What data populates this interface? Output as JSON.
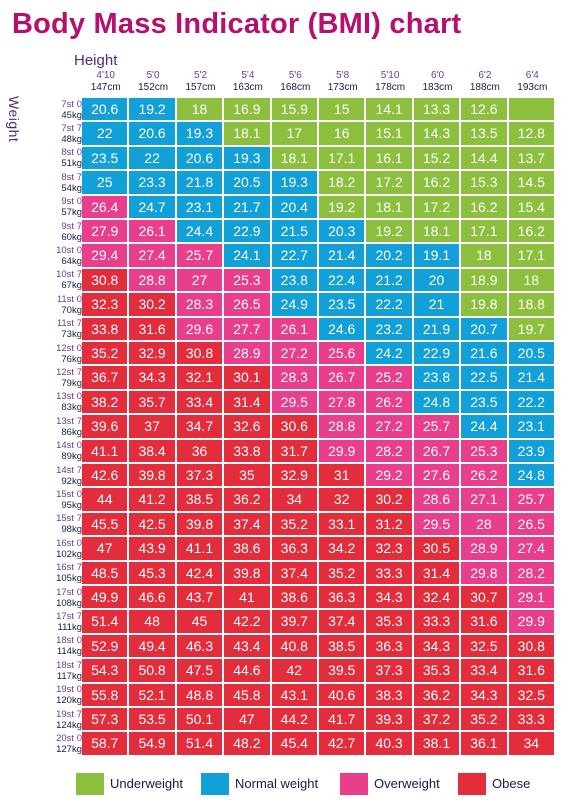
{
  "title": "Body Mass Indicator (BMI) chart",
  "height_label": "Height",
  "weight_label": "Weight",
  "colors": {
    "U": "#8bbf3d",
    "N": "#11a0d8",
    "O": "#e83e8c",
    "B": "#e32d3c"
  },
  "legend": [
    {
      "key": "U",
      "label": "Underweight"
    },
    {
      "key": "N",
      "label": "Normal weight"
    },
    {
      "key": "O",
      "label": "Overweight"
    },
    {
      "key": "B",
      "label": "Obese"
    }
  ],
  "chart_data": {
    "type": "table",
    "columns": [
      {
        "ft": "4'10",
        "cm": "147cm"
      },
      {
        "ft": "5'0",
        "cm": "152cm"
      },
      {
        "ft": "5'2",
        "cm": "157cm"
      },
      {
        "ft": "5'4",
        "cm": "163cm"
      },
      {
        "ft": "5'6",
        "cm": "168cm"
      },
      {
        "ft": "5'8",
        "cm": "173cm"
      },
      {
        "ft": "5'10",
        "cm": "178cm"
      },
      {
        "ft": "6'0",
        "cm": "183cm"
      },
      {
        "ft": "6'2",
        "cm": "188cm"
      },
      {
        "ft": "6'4",
        "cm": "193cm"
      }
    ],
    "rows": [
      {
        "st": "7st 0",
        "kg": "45kg",
        "values": [
          "20.6",
          "19.2",
          "18",
          "16.9",
          "15.9",
          "15",
          "14.1",
          "13.3",
          "12.6",
          ""
        ],
        "cats": "NNUUUUUUUU"
      },
      {
        "st": "7st 7",
        "kg": "48kg",
        "values": [
          "22",
          "20.6",
          "19.3",
          "18.1",
          "17",
          "16",
          "15.1",
          "14.3",
          "13.5",
          "12.8"
        ],
        "cats": "NNNUUUUUUU"
      },
      {
        "st": "8st 0",
        "kg": "51kg",
        "values": [
          "23.5",
          "22",
          "20.6",
          "19.3",
          "18.1",
          "17.1",
          "16.1",
          "15.2",
          "14.4",
          "13.7"
        ],
        "cats": "NNNNUUUUUU"
      },
      {
        "st": "8st 7",
        "kg": "54kg",
        "values": [
          "25",
          "23.3",
          "21.8",
          "20.5",
          "19.3",
          "18.2",
          "17.2",
          "16.2",
          "15.3",
          "14.5"
        ],
        "cats": "NNNNNUUUUU"
      },
      {
        "st": "9st 0",
        "kg": "57kg",
        "values": [
          "26.4",
          "24.7",
          "23.1",
          "21.7",
          "20.4",
          "19.2",
          "18.1",
          "17.2",
          "16.2",
          "15.4"
        ],
        "cats": "ONNNNUUUUU"
      },
      {
        "st": "9st 7",
        "kg": "60kg",
        "values": [
          "27.9",
          "26.1",
          "24.4",
          "22.9",
          "21.5",
          "20.3",
          "19.2",
          "18.1",
          "17.1",
          "16.2"
        ],
        "cats": "OONNNNUUUU"
      },
      {
        "st": "10st 0",
        "kg": "64kg",
        "values": [
          "29.4",
          "27.4",
          "25.7",
          "24.1",
          "22.7",
          "21.4",
          "20.2",
          "19.1",
          "18",
          "17.1"
        ],
        "cats": "OOONNNNNUU"
      },
      {
        "st": "10st 7",
        "kg": "67kg",
        "values": [
          "30.8",
          "28.8",
          "27",
          "25.3",
          "23.8",
          "22.4",
          "21.2",
          "20",
          "18.9",
          "18"
        ],
        "cats": "BOOONNNNUU"
      },
      {
        "st": "11st 0",
        "kg": "70kg",
        "values": [
          "32.3",
          "30.2",
          "28.3",
          "26.5",
          "24.9",
          "23.5",
          "22.2",
          "21",
          "19.8",
          "18.8"
        ],
        "cats": "BBOONNNNUU"
      },
      {
        "st": "11st 7",
        "kg": "73kg",
        "values": [
          "33.8",
          "31.6",
          "29.6",
          "27.7",
          "26.1",
          "24.6",
          "23.2",
          "21.9",
          "20.7",
          "19.7"
        ],
        "cats": "BBOOONNNNU"
      },
      {
        "st": "12st 0",
        "kg": "76kg",
        "values": [
          "35.2",
          "32.9",
          "30.8",
          "28.9",
          "27.2",
          "25.6",
          "24.2",
          "22.9",
          "21.6",
          "20.5"
        ],
        "cats": "BBBOOONNNN"
      },
      {
        "st": "12st 7",
        "kg": "79kg",
        "values": [
          "36.7",
          "34.3",
          "32.1",
          "30.1",
          "28.3",
          "26.7",
          "25.2",
          "23.8",
          "22.5",
          "21.4"
        ],
        "cats": "BBBBOOONNN"
      },
      {
        "st": "13st 0",
        "kg": "83kg",
        "values": [
          "38.2",
          "35.7",
          "33.4",
          "31.4",
          "29.5",
          "27.8",
          "26.2",
          "24.8",
          "23.5",
          "22.2"
        ],
        "cats": "BBBBOOONNN"
      },
      {
        "st": "13st 7",
        "kg": "86kg",
        "values": [
          "39.6",
          "37",
          "34.7",
          "32.6",
          "30.6",
          "28.8",
          "27.2",
          "25.7",
          "24.4",
          "23.1"
        ],
        "cats": "BBBBBOOONN"
      },
      {
        "st": "14st 0",
        "kg": "89kg",
        "values": [
          "41.1",
          "38.4",
          "36",
          "33.8",
          "31.7",
          "29.9",
          "28.2",
          "26.7",
          "25.3",
          "23.9"
        ],
        "cats": "BBBBBOOOON"
      },
      {
        "st": "14st 7",
        "kg": "92kg",
        "values": [
          "42.6",
          "39.8",
          "37.3",
          "35",
          "32.9",
          "31",
          "29.2",
          "27.6",
          "26.2",
          "24.8"
        ],
        "cats": "BBBBBBOOON"
      },
      {
        "st": "15st 0",
        "kg": "95kg",
        "values": [
          "44",
          "41.2",
          "38.5",
          "36.2",
          "34",
          "32",
          "30.2",
          "28.6",
          "27.1",
          "25.7"
        ],
        "cats": "BBBBBBBOOO"
      },
      {
        "st": "15st 7",
        "kg": "98kg",
        "values": [
          "45.5",
          "42.5",
          "39.8",
          "37.4",
          "35.2",
          "33.1",
          "31.2",
          "29.5",
          "28",
          "26.5"
        ],
        "cats": "BBBBBBBOOO"
      },
      {
        "st": "16st 0",
        "kg": "102kg",
        "values": [
          "47",
          "43.9",
          "41.1",
          "38.6",
          "36.3",
          "34.2",
          "32.3",
          "30.5",
          "28.9",
          "27.4"
        ],
        "cats": "BBBBBBBBOO"
      },
      {
        "st": "16st 7",
        "kg": "105kg",
        "values": [
          "48.5",
          "45.3",
          "42.4",
          "39.8",
          "37.4",
          "35.2",
          "33.3",
          "31.4",
          "29.8",
          "28.2"
        ],
        "cats": "BBBBBBBBOO"
      },
      {
        "st": "17st 0",
        "kg": "108kg",
        "values": [
          "49.9",
          "46.6",
          "43.7",
          "41",
          "38.6",
          "36.3",
          "34.3",
          "32.4",
          "30.7",
          "29.1"
        ],
        "cats": "BBBBBBBBBO"
      },
      {
        "st": "17st 7",
        "kg": "111kg",
        "values": [
          "51.4",
          "48",
          "45",
          "42.2",
          "39.7",
          "37.4",
          "35.3",
          "33.3",
          "31.6",
          "29.9"
        ],
        "cats": "BBBBBBBBBO"
      },
      {
        "st": "18st 0",
        "kg": "114kg",
        "values": [
          "52.9",
          "49.4",
          "46.3",
          "43.4",
          "40.8",
          "38.5",
          "36.3",
          "34.3",
          "32.5",
          "30.8"
        ],
        "cats": "BBBBBBBBBB"
      },
      {
        "st": "18st 7",
        "kg": "117kg",
        "values": [
          "54.3",
          "50.8",
          "47.5",
          "44.6",
          "42",
          "39.5",
          "37.3",
          "35.3",
          "33.4",
          "31.6"
        ],
        "cats": "BBBBBBBBBB"
      },
      {
        "st": "19st 0",
        "kg": "120kg",
        "values": [
          "55.8",
          "52.1",
          "48.8",
          "45.8",
          "43.1",
          "40.6",
          "38.3",
          "36.2",
          "34.3",
          "32.5"
        ],
        "cats": "BBBBBBBBBB"
      },
      {
        "st": "19st 7",
        "kg": "124kg",
        "values": [
          "57.3",
          "53.5",
          "50.1",
          "47",
          "44.2",
          "41.7",
          "39.3",
          "37.2",
          "35.2",
          "33.3"
        ],
        "cats": "BBBBBBBBBB"
      },
      {
        "st": "20st 0",
        "kg": "127kg",
        "values": [
          "58.7",
          "54.9",
          "51.4",
          "48.2",
          "45.4",
          "42.7",
          "40.3",
          "38.1",
          "36.1",
          "34"
        ],
        "cats": "BBBBBBBBBB"
      }
    ]
  }
}
